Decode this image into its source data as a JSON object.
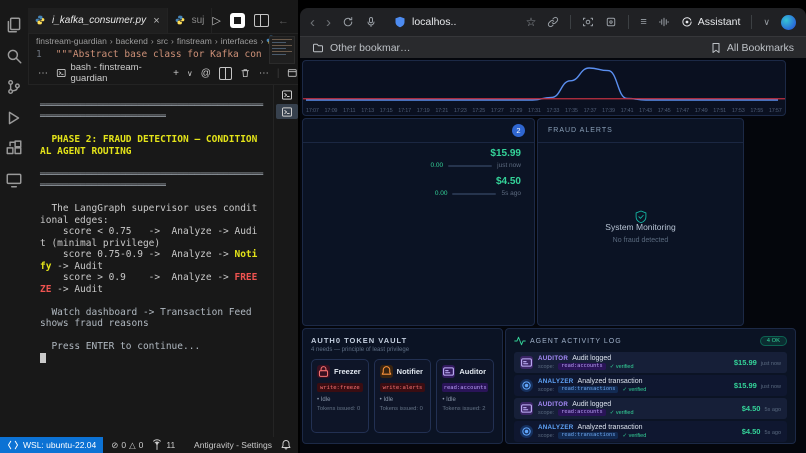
{
  "vscode": {
    "activity_icons": [
      "files-icon",
      "search-icon",
      "source-control-icon",
      "run-debug-icon",
      "extensions-icon",
      "remote-explorer-icon"
    ],
    "tabs": [
      {
        "label": "i_kafka_consumer.py"
      },
      {
        "label": "suj"
      }
    ],
    "breadcrumb": [
      "finstream-guardian",
      "backend",
      "src",
      "finstream",
      "interfaces"
    ],
    "code_line": {
      "number": "1",
      "text": "\"\"\"Abstract base class for Kafka con"
    },
    "terminal": {
      "title": "bash - finstream-guardian",
      "lines": [
        [
          {
            "t": " "
          }
        ],
        [
          {
            "t": "═════════════════════════════════════════════════════════════",
            "c": "dim"
          }
        ],
        [
          {
            "t": " "
          }
        ],
        [
          {
            "t": "  PHASE 2: FRAUD DETECTION — CONDITIONAL AGENT ROUTING",
            "c": "hl"
          }
        ],
        [
          {
            "t": " "
          }
        ],
        [
          {
            "t": "═════════════════════════════════════════════════════════════",
            "c": "dim"
          }
        ],
        [
          {
            "t": " "
          }
        ],
        [
          {
            "t": "  The LangGraph supervisor uses conditional edges:",
            "c": "def"
          }
        ],
        [
          {
            "t": "    score < 0.75   ->  Analyze -> Audit (minimal privilege)",
            "c": "def"
          }
        ],
        [
          {
            "t": "    score 0.75-0.9 ->  Analyze -> ",
            "c": "def"
          },
          {
            "t": "Notify",
            "c": "yellow"
          },
          {
            "t": " -> Audit",
            "c": "def"
          }
        ],
        [
          {
            "t": "    score > 0.9    ->  Analyze -> ",
            "c": "def"
          },
          {
            "t": "FREEZE",
            "c": "red"
          },
          {
            "t": " -> Audit",
            "c": "def"
          }
        ],
        [
          {
            "t": " "
          }
        ],
        [
          {
            "t": "  Watch dashboard -> Transaction Feed shows fraud reasons",
            "c": "dim2"
          }
        ],
        [
          {
            "t": " "
          }
        ],
        [
          {
            "t": "  Press ENTER to continue...",
            "c": "dim2"
          }
        ],
        [
          {
            "t": "",
            "c": "cursor"
          }
        ]
      ]
    },
    "status": {
      "remote": "WSL: ubuntu-22.04",
      "errors": "0",
      "warnings": "0",
      "ports": "11",
      "app": "Antigravity - Settings"
    }
  },
  "browser": {
    "url": "localhos..",
    "assistant": "Assistant",
    "bookmarks_left": "Other bookmar…",
    "bookmarks_right": "All Bookmarks"
  },
  "dashboard": {
    "feed": {
      "badge": "2",
      "transactions": [
        {
          "amount": "$15.99",
          "score": "0.00",
          "time": "just now"
        },
        {
          "amount": "$4.50",
          "score": "0.00",
          "time": "5s ago"
        }
      ]
    },
    "fraud": {
      "title": "FRAUD ALERTS",
      "status": "System Monitoring",
      "substatus": "No fraud detected"
    },
    "vault": {
      "title": "AUTH0 TOKEN VAULT",
      "subtitle": "4 needs — principle of least privilege",
      "cards": [
        {
          "name": "Freezer",
          "icon": "lock-icon",
          "ic": "ic-red",
          "bdg": "bdg-red",
          "scope": "write:freeze",
          "status": "Idle",
          "tokens": "Tokens issued: 0"
        },
        {
          "name": "Notifier",
          "icon": "bell-icon",
          "ic": "ic-orange",
          "bdg": "bdg-red",
          "scope": "write:alerts",
          "status": "Idle",
          "tokens": "Tokens issued: 0"
        },
        {
          "name": "Auditor",
          "icon": "card-icon",
          "ic": "ic-purple",
          "bdg": "bdg-purple",
          "scope": "read:accounts",
          "status": "Idle",
          "tokens": "Tokens issued: 2"
        }
      ]
    },
    "log": {
      "title": "AGENT ACTIVITY LOG",
      "badge": "4 OK",
      "entries": [
        {
          "agent": "AUDITOR",
          "kind": "auditor",
          "action": "Audit logged",
          "scope_label": "scope:",
          "scope": "read:accounts",
          "verified": "✓ verified",
          "amount": "$15.99",
          "time": "just now"
        },
        {
          "agent": "ANALYZER",
          "kind": "analyzer",
          "action": "Analyzed transaction",
          "scope_label": "scope:",
          "scope": "read:transactions",
          "verified": "✓ verified",
          "amount": "$15.99",
          "time": "just now"
        },
        {
          "agent": "AUDITOR",
          "kind": "auditor",
          "action": "Audit logged",
          "scope_label": "scope:",
          "scope": "read:accounts",
          "verified": "✓ verified",
          "amount": "$4.50",
          "time": "5s ago"
        },
        {
          "agent": "ANALYZER",
          "kind": "analyzer",
          "action": "Analyzed transaction",
          "scope_label": "scope:",
          "scope": "read:transactions",
          "verified": "✓ verified",
          "amount": "$4.50",
          "time": "5s ago"
        }
      ]
    }
  },
  "chart_data": {
    "type": "line",
    "title": "",
    "xlabel": "",
    "ylabel": "",
    "x": [
      "17:07",
      "17:09",
      "17:11",
      "17:13",
      "17:15",
      "17:17",
      "17:19",
      "17:21",
      "17:23",
      "17:25",
      "17:27",
      "17:29",
      "17:31",
      "17:33",
      "17:35",
      "17:37",
      "17:39",
      "17:41",
      "17:43",
      "17:45",
      "17:47",
      "17:49",
      "17:51",
      "17:53",
      "17:55",
      "17:57"
    ],
    "series": [
      {
        "name": "transaction-volume",
        "color": "#5b8ff0",
        "values": [
          0,
          0,
          0,
          0,
          0,
          0,
          0,
          0,
          0,
          0,
          0,
          0,
          0,
          0.08,
          0.6,
          1.0,
          0.92,
          0.05,
          0,
          0,
          0,
          0,
          0,
          0,
          0,
          0
        ]
      },
      {
        "name": "fraud-threshold",
        "color": "#c03040",
        "values": [
          0.04,
          0.04,
          0.04,
          0.04,
          0.04,
          0.04,
          0.04,
          0.04,
          0.04,
          0.04,
          0.04,
          0.04,
          0.04,
          0.04,
          0.04,
          0.04,
          0.04,
          0.04,
          0.04,
          0.04,
          0.04,
          0.04,
          0.04,
          0.04,
          0.04,
          0.04
        ]
      }
    ],
    "ylim": [
      0,
      1
    ],
    "grid": false,
    "legend": false
  }
}
